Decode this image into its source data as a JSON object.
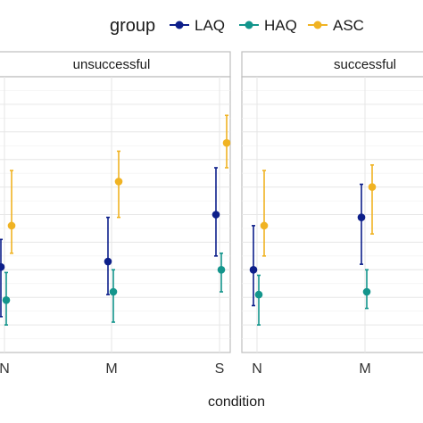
{
  "chart_data": {
    "type": "scatter",
    "xlabel": "condition",
    "ylabel": "",
    "legend_title": "group",
    "legend_position": "top",
    "grid": true,
    "ylim": [
      0,
      10
    ],
    "facets": [
      {
        "label": "unsuccessful",
        "categories": [
          "N",
          "M",
          "S"
        ],
        "series": [
          {
            "name": "LAQ",
            "color": "#0d1f8a",
            "mean": [
              3.1,
              3.3,
              5.0
            ],
            "low": [
              1.3,
              2.1,
              3.5
            ],
            "high": [
              4.1,
              4.9,
              6.7
            ]
          },
          {
            "name": "HAQ",
            "color": "#13958c",
            "mean": [
              1.9,
              2.2,
              3.0
            ],
            "low": [
              1.0,
              1.1,
              2.2
            ],
            "high": [
              2.9,
              3.0,
              3.6
            ]
          },
          {
            "name": "ASC",
            "color": "#f0b323",
            "mean": [
              4.6,
              6.2,
              7.6
            ],
            "low": [
              3.6,
              4.9,
              6.7
            ],
            "high": [
              6.6,
              7.3,
              8.6
            ]
          }
        ]
      },
      {
        "label": "successful",
        "categories": [
          "N",
          "M"
        ],
        "series": [
          {
            "name": "LAQ",
            "color": "#0d1f8a",
            "mean": [
              3.0,
              4.9
            ],
            "low": [
              1.7,
              3.2
            ],
            "high": [
              4.6,
              6.1
            ]
          },
          {
            "name": "HAQ",
            "color": "#13958c",
            "mean": [
              2.1,
              2.2
            ],
            "low": [
              1.0,
              1.6
            ],
            "high": [
              2.8,
              3.0
            ]
          },
          {
            "name": "ASC",
            "color": "#f0b323",
            "mean": [
              4.6,
              6.0
            ],
            "low": [
              3.5,
              4.3
            ],
            "high": [
              6.6,
              6.8
            ]
          }
        ]
      }
    ]
  }
}
